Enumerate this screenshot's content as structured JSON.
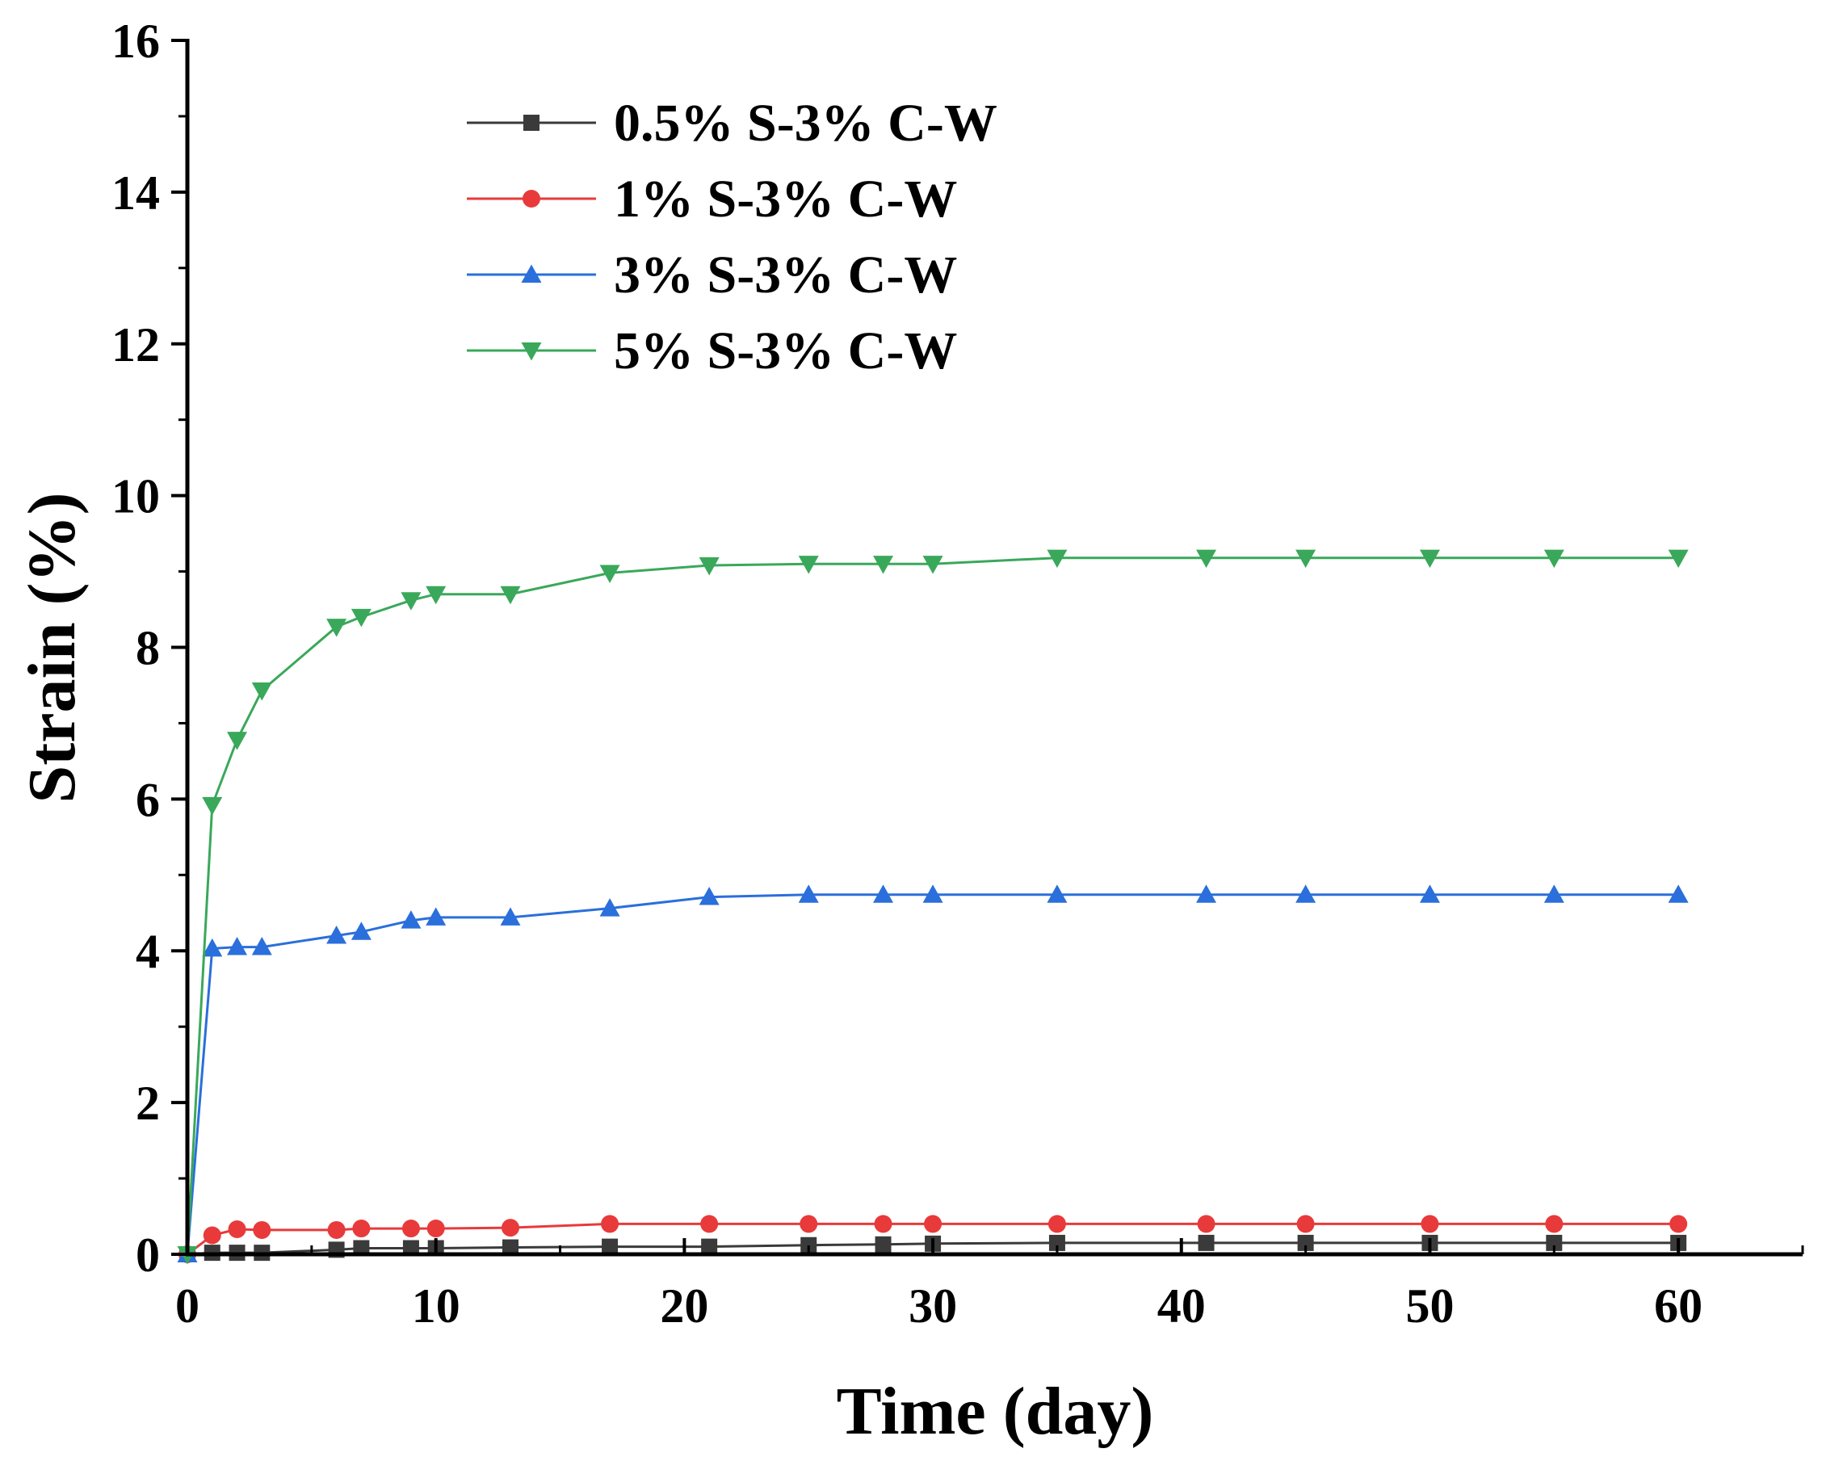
{
  "chart_data": {
    "type": "line",
    "xlabel": "Time (day)",
    "ylabel": "Strain (%)",
    "xlim": [
      0,
      65
    ],
    "ylim": [
      0,
      16
    ],
    "xticks": [
      0,
      10,
      20,
      30,
      40,
      50,
      60
    ],
    "yticks": [
      0,
      2,
      4,
      6,
      8,
      10,
      12,
      14,
      16
    ],
    "legend_position": "top-center",
    "series": [
      {
        "name": "0.5% S-3% C-W",
        "color": "#3a3a3a",
        "marker": "square",
        "x": [
          0,
          1,
          2,
          3,
          6,
          7,
          9,
          10,
          13,
          17,
          21,
          25,
          28,
          30,
          35,
          41,
          45,
          50,
          55,
          60
        ],
        "y": [
          0,
          0.02,
          0.02,
          0.02,
          0.06,
          0.08,
          0.08,
          0.08,
          0.09,
          0.1,
          0.1,
          0.12,
          0.13,
          0.14,
          0.15,
          0.15,
          0.15,
          0.15,
          0.15,
          0.15
        ]
      },
      {
        "name": "1% S-3% C-W",
        "color": "#e83a3a",
        "marker": "circle",
        "x": [
          0,
          1,
          2,
          3,
          6,
          7,
          9,
          10,
          13,
          17,
          21,
          25,
          28,
          30,
          35,
          41,
          45,
          50,
          55,
          60
        ],
        "y": [
          0,
          0.25,
          0.33,
          0.32,
          0.32,
          0.34,
          0.34,
          0.34,
          0.35,
          0.4,
          0.4,
          0.4,
          0.4,
          0.4,
          0.4,
          0.4,
          0.4,
          0.4,
          0.4,
          0.4
        ]
      },
      {
        "name": "3% S-3% C-W",
        "color": "#2a6fdb",
        "marker": "triangle-up",
        "x": [
          0,
          1,
          2,
          3,
          6,
          7,
          9,
          10,
          13,
          17,
          21,
          25,
          28,
          30,
          35,
          41,
          45,
          50,
          55,
          60
        ],
        "y": [
          0,
          4.03,
          4.05,
          4.05,
          4.2,
          4.25,
          4.4,
          4.44,
          4.44,
          4.56,
          4.71,
          4.74,
          4.74,
          4.74,
          4.74,
          4.74,
          4.74,
          4.74,
          4.74,
          4.74
        ]
      },
      {
        "name": "5% S-3% C-W",
        "color": "#3aa85a",
        "marker": "triangle-down",
        "x": [
          0,
          1,
          2,
          3,
          6,
          7,
          9,
          10,
          13,
          17,
          21,
          25,
          28,
          30,
          35,
          41,
          45,
          50,
          55,
          60
        ],
        "y": [
          0,
          5.92,
          6.78,
          7.43,
          8.27,
          8.4,
          8.62,
          8.7,
          8.7,
          8.98,
          9.08,
          9.1,
          9.1,
          9.1,
          9.18,
          9.18,
          9.18,
          9.18,
          9.18,
          9.18
        ]
      }
    ]
  }
}
